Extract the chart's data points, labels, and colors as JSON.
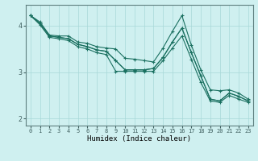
{
  "xlabel": "Humidex (Indice chaleur)",
  "bg_color": "#cff0f0",
  "grid_color": "#a8d8d8",
  "line_color": "#1a7060",
  "xlim": [
    -0.5,
    23.5
  ],
  "ylim": [
    1.85,
    4.45
  ],
  "yticks": [
    2,
    3,
    4
  ],
  "xticks": [
    0,
    1,
    2,
    3,
    4,
    5,
    6,
    7,
    8,
    9,
    10,
    11,
    12,
    13,
    14,
    15,
    16,
    17,
    18,
    19,
    20,
    21,
    22,
    23
  ],
  "series": [
    [
      4.22,
      4.08,
      3.8,
      3.78,
      3.78,
      3.65,
      3.62,
      3.55,
      3.52,
      3.5,
      3.3,
      3.28,
      3.25,
      3.22,
      3.52,
      3.88,
      4.22,
      3.58,
      3.05,
      2.62,
      2.6,
      2.62,
      2.55,
      2.42
    ],
    [
      4.22,
      4.05,
      3.78,
      3.75,
      3.72,
      3.6,
      3.55,
      3.48,
      3.45,
      3.25,
      3.05,
      3.05,
      3.05,
      3.08,
      3.32,
      3.65,
      3.95,
      3.42,
      2.92,
      2.42,
      2.38,
      2.55,
      2.48,
      2.38
    ],
    [
      4.22,
      4.05,
      3.78,
      3.75,
      3.72,
      3.6,
      3.55,
      3.48,
      3.45,
      3.25,
      3.05,
      3.05,
      3.05,
      3.08,
      3.32,
      3.65,
      3.95,
      3.42,
      2.92,
      2.42,
      2.38,
      2.55,
      2.48,
      2.38
    ],
    [
      4.22,
      4.02,
      3.75,
      3.72,
      3.68,
      3.55,
      3.5,
      3.42,
      3.38,
      3.02,
      3.02,
      3.02,
      3.02,
      3.02,
      3.25,
      3.52,
      3.78,
      3.28,
      2.78,
      2.38,
      2.35,
      2.5,
      2.42,
      2.35
    ]
  ]
}
